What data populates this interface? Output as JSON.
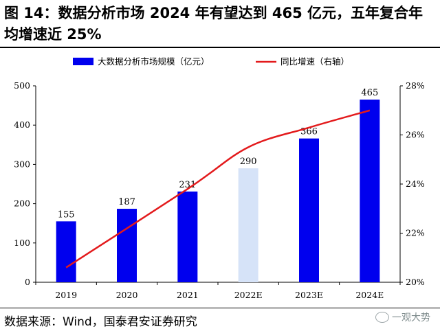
{
  "figure": {
    "title": "图 14：数据分析市场 2024 年有望达到 465 亿元，五年复合年均增速近 25%",
    "source": "数据来源：Wind，国泰君安证券研究",
    "watermark": "一观大势"
  },
  "chart_data": {
    "type": "bar",
    "categories": [
      "2019",
      "2020",
      "2021",
      "2022E",
      "2023E",
      "2024E"
    ],
    "series": [
      {
        "name": "大数据分析市场规模（亿元）",
        "type": "bar",
        "axis": "left",
        "values": [
          155,
          187,
          231,
          290,
          366,
          465
        ],
        "data_labels": [
          "155",
          "187",
          "231",
          "290",
          "366",
          "465"
        ],
        "color": "#0000ee",
        "highlight_color": "#d6e3f8",
        "highlight_index": 3
      },
      {
        "name": "同比增速（右轴）",
        "type": "line",
        "axis": "right",
        "values": [
          20.6,
          null,
          23.8,
          25.5,
          26.3,
          27.0
        ],
        "color": "#e31a1c"
      }
    ],
    "y_left": {
      "min": 0,
      "max": 500,
      "ticks": [
        "0",
        "100",
        "200",
        "300",
        "400",
        "500"
      ]
    },
    "y_right": {
      "min": 20,
      "max": 28,
      "ticks": [
        "20%",
        "22%",
        "24%",
        "26%",
        "28%"
      ]
    },
    "grid": false,
    "legend_position": "top"
  }
}
